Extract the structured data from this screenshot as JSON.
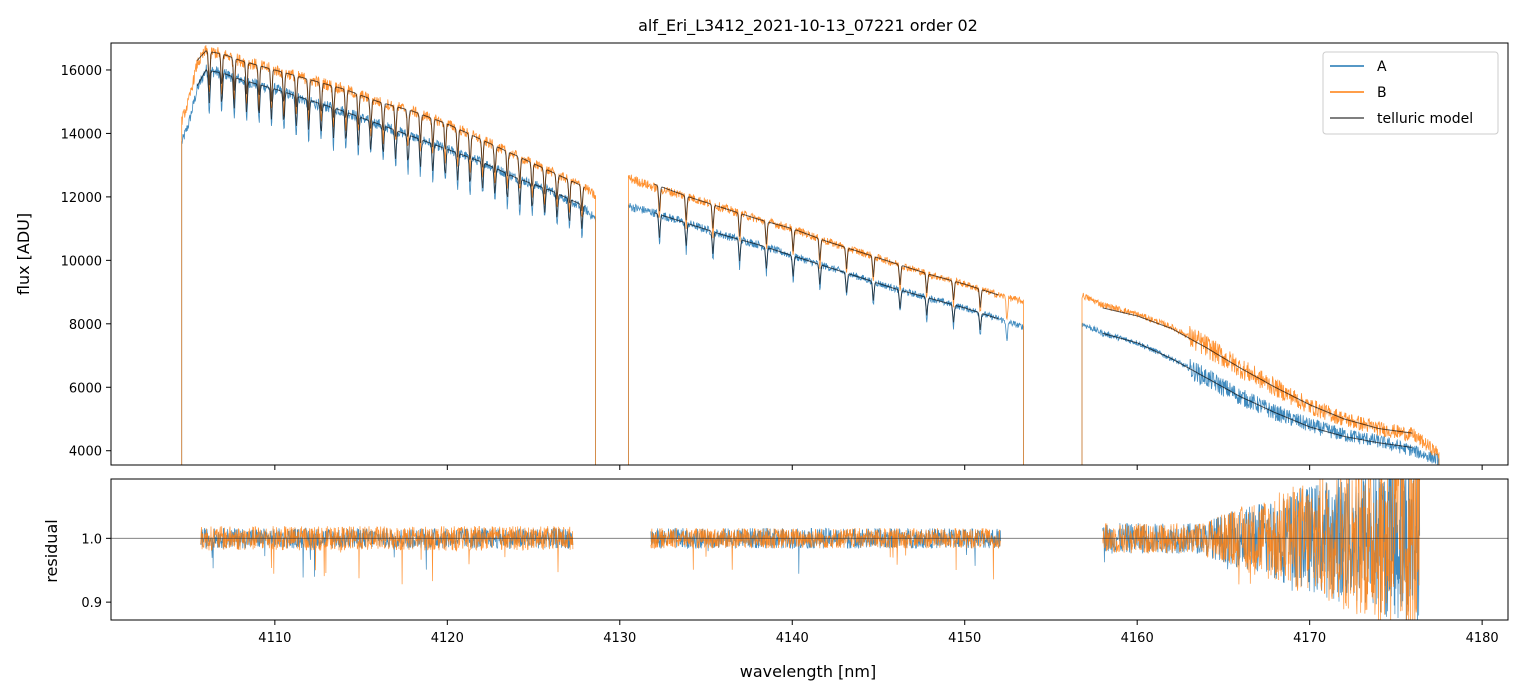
{
  "chart_data": [
    {
      "type": "line",
      "title": "alf_Eri_L3412_2021-10-13_07221  order 02",
      "xlabel": "",
      "ylabel": "flux [ADU]",
      "xlim": [
        4100.5,
        4181.5
      ],
      "ylim": [
        3550,
        16850
      ],
      "yticks": [
        4000,
        6000,
        8000,
        10000,
        12000,
        14000,
        16000
      ],
      "yticklabels": [
        "4000",
        "6000",
        "8000",
        "10000",
        "12000",
        "14000",
        "16000"
      ],
      "legend": {
        "position": "top-right",
        "entries": [
          "A",
          "B",
          "telluric model"
        ]
      },
      "series": [
        {
          "name": "A",
          "color": "#1f77b4",
          "segments": [
            {
              "x": [
                4104.6,
                4105.0,
                4105.5,
                4106.0,
                4107.0,
                4108.0,
                4110.0,
                4112.0,
                4114.0,
                4116.0,
                4118.0,
                4120.0,
                4122.0,
                4124.0,
                4126.0,
                4128.0,
                4128.6
              ],
              "y": [
                13700,
                14300,
                15400,
                16000,
                15900,
                15700,
                15400,
                15000,
                14700,
                14300,
                13900,
                13500,
                13100,
                12600,
                12200,
                11600,
                11300
              ]
            },
            {
              "x": [
                4130.5,
                4132.0,
                4134.0,
                4136.0,
                4138.0,
                4140.0,
                4142.0,
                4144.0,
                4146.0,
                4148.0,
                4150.0,
                4152.0,
                4153.4
              ],
              "y": [
                11700,
                11500,
                11150,
                10800,
                10500,
                10150,
                9800,
                9450,
                9100,
                8800,
                8500,
                8150,
                7900
              ]
            },
            {
              "x": [
                4156.8,
                4158.0,
                4160.0,
                4162.0,
                4164.0,
                4166.0,
                4168.0,
                4170.0,
                4172.0,
                4174.0,
                4176.0,
                4177.5
              ],
              "y": [
                8000,
                7700,
                7400,
                6900,
                6300,
                5700,
                5200,
                4800,
                4500,
                4300,
                4000,
                3700
              ]
            }
          ]
        },
        {
          "name": "B",
          "color": "#ff7f0e",
          "segments": [
            {
              "x": [
                4104.6,
                4105.0,
                4105.5,
                4106.0,
                4107.0,
                4108.0,
                4110.0,
                4112.0,
                4114.0,
                4116.0,
                4118.0,
                4120.0,
                4122.0,
                4124.0,
                4126.0,
                4128.0,
                4128.6
              ],
              "y": [
                14400,
                15000,
                16200,
                16600,
                16500,
                16300,
                16000,
                15700,
                15400,
                15000,
                14700,
                14300,
                13800,
                13300,
                12800,
                12300,
                12000
              ]
            },
            {
              "x": [
                4130.5,
                4132.0,
                4134.0,
                4136.0,
                4138.0,
                4140.0,
                4142.0,
                4144.0,
                4146.0,
                4148.0,
                4150.0,
                4152.0,
                4153.4
              ],
              "y": [
                12600,
                12300,
                12000,
                11650,
                11300,
                11000,
                10600,
                10250,
                9900,
                9550,
                9250,
                8900,
                8700
              ]
            },
            {
              "x": [
                4156.8,
                4158.0,
                4160.0,
                4162.0,
                4164.0,
                4166.0,
                4168.0,
                4170.0,
                4172.0,
                4174.0,
                4176.0,
                4177.5
              ],
              "y": [
                8900,
                8600,
                8300,
                7900,
                7300,
                6600,
                6000,
                5400,
                5000,
                4700,
                4500,
                3900
              ]
            }
          ]
        },
        {
          "name": "telluric model",
          "color": "#000000",
          "segments": [
            {
              "x": [
                4105.5,
                4106.0,
                4107.0,
                4108.0,
                4110.0,
                4112.0,
                4114.0,
                4116.0,
                4118.0,
                4120.0,
                4122.0,
                4124.0,
                4126.0,
                4128.0
              ],
              "y": [
                15500,
                16000,
                15900,
                15700,
                15400,
                15050,
                14700,
                14300,
                13900,
                13500,
                13100,
                12600,
                12200,
                11700
              ]
            },
            {
              "x": [
                4105.5,
                4106.0,
                4107.0,
                4108.0,
                4110.0,
                4112.0,
                4114.0,
                4116.0,
                4118.0,
                4120.0,
                4122.0,
                4124.0,
                4126.0,
                4128.0
              ],
              "y": [
                16300,
                16600,
                16500,
                16300,
                16000,
                15700,
                15400,
                15000,
                14700,
                14300,
                13800,
                13300,
                12800,
                12300
              ]
            },
            {
              "x": [
                4132.0,
                4134.0,
                4136.0,
                4138.0,
                4140.0,
                4142.0,
                4144.0,
                4146.0,
                4148.0,
                4150.0,
                4152.0
              ],
              "y": [
                11500,
                11150,
                10800,
                10500,
                10150,
                9800,
                9450,
                9100,
                8800,
                8500,
                8150
              ]
            },
            {
              "x": [
                4132.0,
                4134.0,
                4136.0,
                4138.0,
                4140.0,
                4142.0,
                4144.0,
                4146.0,
                4148.0,
                4150.0,
                4152.0
              ],
              "y": [
                12400,
                12000,
                11650,
                11300,
                11000,
                10600,
                10250,
                9900,
                9550,
                9250,
                8900
              ]
            },
            {
              "x": [
                4158.0,
                4160.0,
                4162.0,
                4164.0,
                4166.0,
                4168.0,
                4170.0,
                4172.0,
                4174.0,
                4176.0
              ],
              "y": [
                7700,
                7400,
                6900,
                6300,
                5700,
                5200,
                4750,
                4450,
                4250,
                4100
              ]
            },
            {
              "x": [
                4158.0,
                4160.0,
                4162.0,
                4164.0,
                4166.0,
                4168.0,
                4170.0,
                4172.0,
                4174.0,
                4176.0
              ],
              "y": [
                8500,
                8250,
                7850,
                7250,
                6600,
                6000,
                5450,
                5000,
                4700,
                4550
              ]
            }
          ]
        }
      ]
    },
    {
      "type": "line",
      "title": "",
      "xlabel": "wavelength [nm]",
      "ylabel": "residual",
      "xlim": [
        4100.5,
        4181.5
      ],
      "ylim": [
        0.872,
        1.093
      ],
      "xticks": [
        4110,
        4120,
        4130,
        4140,
        4150,
        4160,
        4170,
        4180
      ],
      "xticklabels": [
        "4110",
        "4120",
        "4130",
        "4140",
        "4150",
        "4160",
        "4170",
        "4180"
      ],
      "yticks": [
        0.9,
        1.0
      ],
      "yticklabels": [
        "0.9",
        "1.0"
      ],
      "reference_line": 1.0,
      "series": [
        {
          "name": "A",
          "color": "#1f77b4",
          "segments": [
            {
              "x": [
                4105.7,
                4127.3
              ],
              "noise": [
                0.01,
                0.01
              ]
            },
            {
              "x": [
                4131.8,
                4152.1
              ],
              "noise": [
                0.01,
                0.012
              ]
            },
            {
              "x": [
                4158.0,
                4176.4
              ],
              "noise": [
                0.015,
                0.09
              ]
            }
          ]
        },
        {
          "name": "B",
          "color": "#ff7f0e",
          "segments": [
            {
              "x": [
                4105.7,
                4127.3
              ],
              "noise": [
                0.012,
                0.01
              ]
            },
            {
              "x": [
                4131.8,
                4152.1
              ],
              "noise": [
                0.01,
                0.012
              ]
            },
            {
              "x": [
                4158.0,
                4176.4
              ],
              "noise": [
                0.015,
                0.1
              ]
            }
          ]
        }
      ]
    }
  ]
}
